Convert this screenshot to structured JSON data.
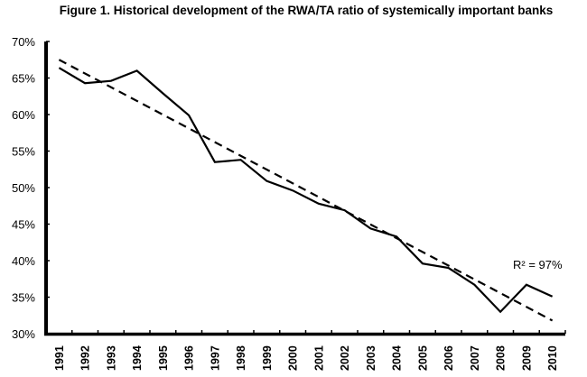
{
  "chart_data": {
    "type": "line",
    "title": "Figure 1. Historical development of the RWA/TA ratio of systemically important banks",
    "xlabel": "",
    "ylabel": "",
    "categories": [
      "1991",
      "1992",
      "1993",
      "1994",
      "1995",
      "1996",
      "1997",
      "1998",
      "1999",
      "2000",
      "2001",
      "2002",
      "2003",
      "2004",
      "2005",
      "2006",
      "2007",
      "2008",
      "2009",
      "2010"
    ],
    "series": [
      {
        "name": "RWA/TA ratio",
        "style": "solid",
        "values": [
          66.4,
          64.3,
          64.6,
          66.0,
          62.9,
          59.9,
          53.5,
          53.8,
          50.9,
          49.6,
          47.8,
          46.9,
          44.4,
          43.3,
          39.6,
          39.0,
          36.7,
          33.0,
          36.7,
          35.1
        ]
      },
      {
        "name": "Linear trend",
        "style": "dashed",
        "values": [
          67.5,
          31.8
        ]
      }
    ],
    "ylim": [
      30,
      70
    ],
    "yticks": [
      30,
      35,
      40,
      45,
      50,
      55,
      60,
      65,
      70
    ],
    "ytick_labels": [
      "30%",
      "35%",
      "40%",
      "45%",
      "50%",
      "55%",
      "60%",
      "65%",
      "70%"
    ],
    "grid": false,
    "legend": "none",
    "annotations": [
      {
        "text": "R² = 97%",
        "near": "2009"
      }
    ],
    "colors": {
      "line": "#000000",
      "axis": "#000000"
    }
  }
}
